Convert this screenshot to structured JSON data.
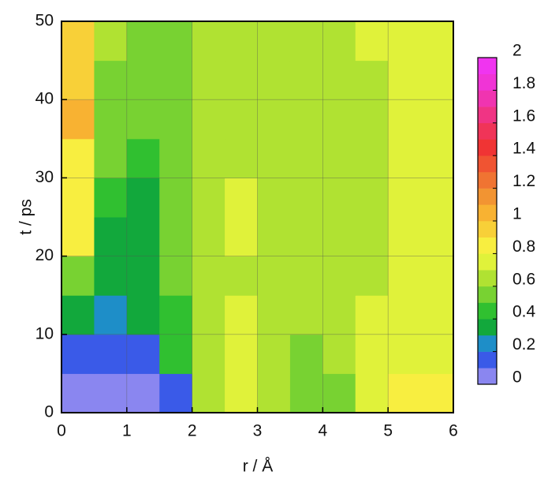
{
  "chart_data": {
    "type": "contour",
    "xlabel": "r / Å",
    "ylabel": "t / ps",
    "xlim": [
      0,
      6
    ],
    "ylim": [
      0,
      50
    ],
    "xticks": [
      0,
      1,
      2,
      3,
      4,
      5,
      6
    ],
    "yticks": [
      0,
      10,
      20,
      30,
      40,
      50
    ],
    "grid": true,
    "x": [
      0.25,
      0.75,
      1.25,
      1.75,
      2.25,
      2.75,
      3.25,
      3.75,
      4.25,
      4.75,
      5.25,
      5.75
    ],
    "y": [
      2.5,
      7.5,
      12.5,
      17.5,
      22.5,
      27.5,
      32.5,
      37.5,
      42.5,
      47.5
    ],
    "z": [
      [
        0.05,
        0.0,
        0.02,
        0.1,
        0.65,
        0.72,
        0.65,
        0.55,
        0.58,
        0.7,
        0.85,
        0.8
      ],
      [
        0.15,
        0.1,
        0.15,
        0.4,
        0.62,
        0.72,
        0.65,
        0.55,
        0.6,
        0.7,
        0.78,
        0.78
      ],
      [
        0.3,
        0.25,
        0.3,
        0.45,
        0.62,
        0.7,
        0.65,
        0.62,
        0.65,
        0.7,
        0.78,
        0.78
      ],
      [
        0.5,
        0.35,
        0.38,
        0.5,
        0.62,
        0.65,
        0.65,
        0.63,
        0.65,
        0.66,
        0.78,
        0.78
      ],
      [
        0.8,
        0.38,
        0.35,
        0.5,
        0.62,
        0.7,
        0.65,
        0.63,
        0.65,
        0.66,
        0.77,
        0.78
      ],
      [
        0.85,
        0.42,
        0.35,
        0.52,
        0.62,
        0.7,
        0.65,
        0.6,
        0.65,
        0.66,
        0.76,
        0.78
      ],
      [
        0.85,
        0.5,
        0.45,
        0.55,
        0.63,
        0.65,
        0.65,
        0.62,
        0.65,
        0.66,
        0.72,
        0.78
      ],
      [
        1.0,
        0.55,
        0.5,
        0.55,
        0.62,
        0.64,
        0.63,
        0.62,
        0.65,
        0.66,
        0.7,
        0.78
      ],
      [
        0.95,
        0.55,
        0.5,
        0.55,
        0.6,
        0.63,
        0.62,
        0.62,
        0.65,
        0.66,
        0.7,
        0.78
      ],
      [
        0.9,
        0.6,
        0.55,
        0.55,
        0.6,
        0.63,
        0.62,
        0.62,
        0.65,
        0.7,
        0.75,
        0.78
      ]
    ],
    "levels": [
      0,
      0.1,
      0.2,
      0.3,
      0.4,
      0.5,
      0.6,
      0.7,
      0.8,
      0.9,
      1,
      1.1,
      1.2,
      1.3,
      1.4,
      1.5,
      1.6,
      1.7,
      1.8,
      1.9,
      2
    ],
    "colors": [
      "#8a86f0",
      "#3a5ae8",
      "#1e8ec8",
      "#12a83c",
      "#30c030",
      "#78d232",
      "#b0e232",
      "#e0f23a",
      "#f8ee40",
      "#f8d038",
      "#f8b232",
      "#f29432",
      "#f07432",
      "#f05432",
      "#f03434",
      "#f03458",
      "#f03484",
      "#f034b0",
      "#f034d6",
      "#f034f0"
    ],
    "clim": [
      0,
      2
    ],
    "colorbar_ticks": [
      0,
      0.2,
      0.4,
      0.6,
      0.8,
      1,
      1.2,
      1.4,
      1.6,
      1.8,
      2
    ]
  }
}
